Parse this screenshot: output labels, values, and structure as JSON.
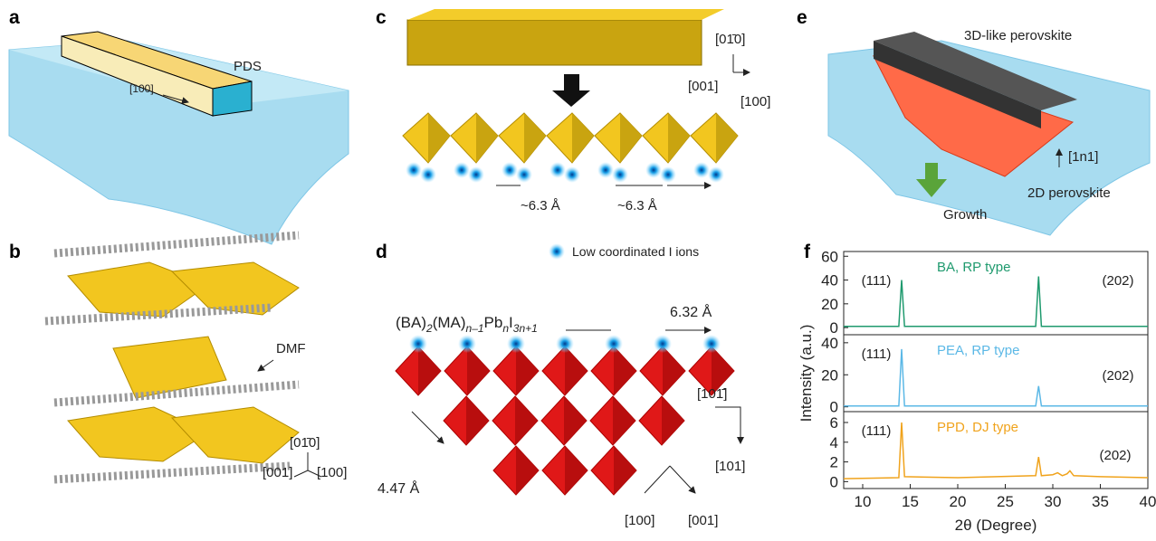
{
  "panels": {
    "a": {
      "label": "a",
      "pds": "PDS",
      "direction": "[100]"
    },
    "b": {
      "label": "b",
      "dmf": "DMF",
      "axis_up": "[01̄0]",
      "axis_left": "[001]",
      "axis_right": "[100]"
    },
    "c": {
      "label": "c",
      "axis_up": "[01̄0]",
      "axis_left": "[001]",
      "axis_right": "[100]",
      "spacing_1": "~6.3 Å",
      "spacing_2": "~6.3 Å"
    },
    "d": {
      "label": "d",
      "legend": "Low coordinated I ions",
      "formula": [
        "(BA)",
        "2",
        "(MA)",
        "n–1",
        "Pb",
        "n",
        "I",
        "3n+1"
      ],
      "spacing_top": "6.32 Å",
      "spacing_left": "4.47 Å",
      "dir_1": "[101̄]",
      "dir_2": "[101]",
      "dir_3": "[100]",
      "dir_4": "[001]"
    },
    "e": {
      "label": "e",
      "top": "3D-like perovskite",
      "direction": "[1n1]",
      "bottom": "2D perovskite",
      "growth": "Growth"
    },
    "f": {
      "label": "f"
    }
  },
  "chart_data": [
    {
      "type": "line",
      "xlim": [
        8,
        40
      ],
      "ylim": [
        -6,
        64
      ],
      "yticks": [
        0,
        20,
        40,
        60
      ],
      "annotations": [
        "(111)",
        "(202)"
      ],
      "x": [
        8,
        13.8,
        14.1,
        14.4,
        28.2,
        28.5,
        28.8,
        40
      ],
      "series": [
        {
          "name": "BA, RP type",
          "color": "#1f9a6e",
          "values": [
            1,
            1,
            40,
            1,
            1,
            43,
            1,
            1
          ]
        }
      ]
    },
    {
      "type": "line",
      "xlim": [
        8,
        40
      ],
      "ylim": [
        -3,
        45
      ],
      "yticks": [
        0,
        20,
        40
      ],
      "ylabel": "Intensity (a.u.)",
      "annotations": [
        "(111)",
        "(202)"
      ],
      "x": [
        8,
        13.8,
        14.1,
        14.4,
        28.2,
        28.5,
        28.8,
        40
      ],
      "series": [
        {
          "name": "PEA, RP type",
          "color": "#5bb8e6",
          "values": [
            0.5,
            0.5,
            36,
            0.5,
            0.5,
            13,
            0.5,
            0.5
          ]
        }
      ]
    },
    {
      "type": "line",
      "xlim": [
        8,
        40
      ],
      "ylim": [
        -0.7,
        7.1
      ],
      "yticks": [
        0,
        2,
        4,
        6
      ],
      "xticks": [
        10,
        15,
        20,
        25,
        30,
        35,
        40
      ],
      "xlabel": "2θ (Degree)",
      "annotations": [
        "(111)",
        "(202)"
      ],
      "x": [
        8,
        13.8,
        14.1,
        14.4,
        20,
        28.2,
        28.5,
        28.8,
        30,
        30.5,
        31,
        31.5,
        31.8,
        32.2,
        35,
        40
      ],
      "series": [
        {
          "name": "PPD, DJ type",
          "color": "#f0a31c",
          "values": [
            0.3,
            0.4,
            6,
            0.5,
            0.4,
            0.6,
            2.5,
            0.6,
            0.7,
            0.9,
            0.6,
            0.8,
            1.1,
            0.6,
            0.5,
            0.4
          ]
        }
      ]
    }
  ]
}
